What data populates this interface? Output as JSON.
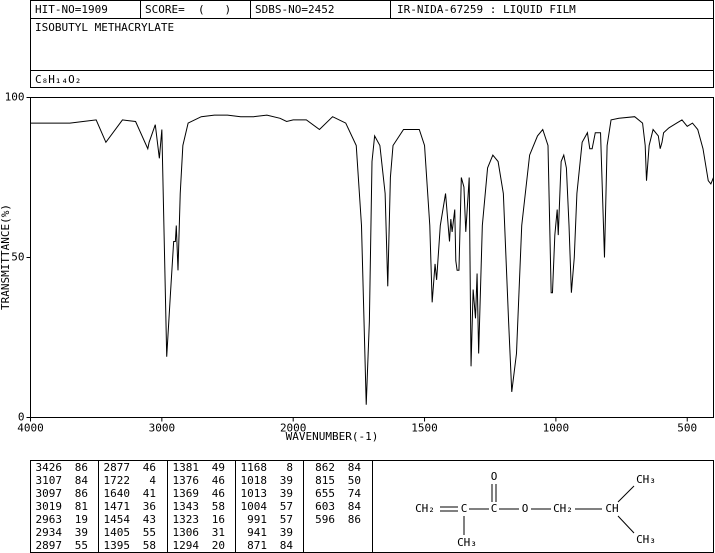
{
  "header": {
    "hit": "HIT-NO=1909",
    "score": "SCORE=  (   )",
    "sdbs": "SDBS-NO=2452",
    "method": "IR-NIDA-67259 : LIQUID FILM"
  },
  "compound": {
    "name": "ISOBUTYL METHACRYLATE",
    "formula": "C₈H₁₄O₂"
  },
  "chart_data": {
    "type": "line",
    "xlabel": "WAVENUMBER(-1)",
    "ylabel": "TRANSMITTANCE(%)",
    "xlim": [
      4000,
      400
    ],
    "x_scale_break": 2000,
    "x_scale_factor": 2,
    "ylim": [
      0,
      100
    ],
    "xticks": [
      4000,
      3000,
      2000,
      1500,
      1000,
      500
    ],
    "yticks": [
      0,
      50,
      100
    ],
    "color": "#000000",
    "x": [
      4000,
      3700,
      3600,
      3500,
      3426,
      3300,
      3200,
      3107,
      3097,
      3050,
      3019,
      3000,
      2963,
      2934,
      2910,
      2897,
      2890,
      2877,
      2860,
      2840,
      2800,
      2700,
      2600,
      2500,
      2400,
      2300,
      2200,
      2100,
      2050,
      2000,
      1950,
      1900,
      1850,
      1800,
      1760,
      1740,
      1722,
      1710,
      1700,
      1690,
      1670,
      1650,
      1640,
      1630,
      1620,
      1580,
      1520,
      1500,
      1480,
      1471,
      1460,
      1454,
      1440,
      1420,
      1405,
      1400,
      1395,
      1385,
      1381,
      1376,
      1369,
      1360,
      1350,
      1343,
      1330,
      1323,
      1315,
      1306,
      1300,
      1294,
      1280,
      1260,
      1240,
      1220,
      1200,
      1180,
      1168,
      1150,
      1130,
      1100,
      1070,
      1050,
      1030,
      1018,
      1013,
      1004,
      995,
      991,
      980,
      970,
      960,
      950,
      941,
      930,
      920,
      900,
      880,
      871,
      862,
      850,
      830,
      815,
      805,
      790,
      760,
      700,
      670,
      660,
      655,
      645,
      630,
      610,
      603,
      596,
      590,
      570,
      540,
      520,
      500,
      480,
      460,
      440,
      420,
      410,
      400
    ],
    "values": [
      92,
      92,
      92.5,
      93,
      86,
      93,
      92.5,
      84,
      86,
      91.5,
      81,
      90,
      19,
      39,
      55,
      55,
      60,
      46,
      70,
      85,
      92,
      94,
      94.5,
      94.5,
      94,
      94,
      94.5,
      93.5,
      92.5,
      93,
      93,
      90,
      94,
      92,
      85,
      60,
      4,
      30,
      80,
      88,
      85,
      70,
      41,
      75,
      85,
      90,
      90,
      85,
      60,
      36,
      48,
      43,
      60,
      70,
      55,
      62,
      58,
      65,
      49,
      46,
      46,
      75,
      72,
      58,
      75,
      16,
      40,
      31,
      45,
      20,
      60,
      78,
      82,
      80,
      70,
      30,
      8,
      20,
      60,
      82,
      88,
      90,
      85,
      39,
      39,
      57,
      65,
      57,
      80,
      82,
      78,
      60,
      39,
      50,
      70,
      86,
      89,
      84,
      84,
      89,
      89,
      50,
      85,
      93,
      93.5,
      94,
      92,
      85,
      74,
      85,
      90,
      88,
      84,
      86,
      89,
      90.5,
      92,
      93,
      91,
      92,
      90,
      84,
      74,
      73,
      75
    ]
  },
  "peak_table": [
    [
      [
        3426,
        86
      ],
      [
        3107,
        84
      ],
      [
        3097,
        86
      ],
      [
        3019,
        81
      ],
      [
        2963,
        19
      ],
      [
        2934,
        39
      ],
      [
        2897,
        55
      ]
    ],
    [
      [
        2877,
        46
      ],
      [
        1722,
        4
      ],
      [
        1640,
        41
      ],
      [
        1471,
        36
      ],
      [
        1454,
        43
      ],
      [
        1405,
        55
      ],
      [
        1395,
        58
      ]
    ],
    [
      [
        1381,
        49
      ],
      [
        1376,
        46
      ],
      [
        1369,
        46
      ],
      [
        1343,
        58
      ],
      [
        1323,
        16
      ],
      [
        1306,
        31
      ],
      [
        1294,
        20
      ]
    ],
    [
      [
        1168,
        8
      ],
      [
        1018,
        39
      ],
      [
        1013,
        39
      ],
      [
        1004,
        57
      ],
      [
        991,
        57
      ],
      [
        941,
        39
      ],
      [
        871,
        84
      ]
    ],
    [
      [
        862,
        84
      ],
      [
        815,
        50
      ],
      [
        655,
        74
      ],
      [
        603,
        84
      ],
      [
        596,
        86
      ]
    ]
  ],
  "structure": {
    "carbonyl_o": "O",
    "vinyl_ch2": "CH₂",
    "alpha_c": "C",
    "carbonyl_c": "C",
    "ester_o": "O",
    "ch2": "CH₂",
    "ch": "CH",
    "alpha_ch3": "CH₃",
    "ch3_top": "CH₃",
    "ch3_bottom": "CH₃"
  }
}
